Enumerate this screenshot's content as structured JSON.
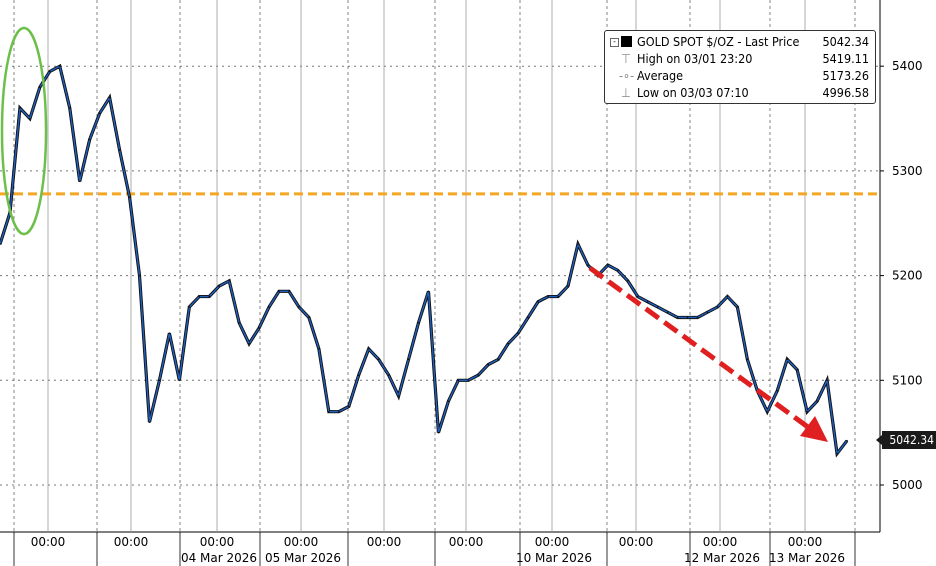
{
  "chart_data": {
    "type": "line",
    "title": "",
    "ylim": [
      4950,
      5460
    ],
    "yticks": [
      5000,
      5100,
      5200,
      5300,
      5400
    ],
    "xtick_labels": [
      {
        "time": "00:00",
        "date": ""
      },
      {
        "time": "00:00",
        "date": ""
      },
      {
        "time": "00:00",
        "date": "04 Mar 2026"
      },
      {
        "time": "00:00",
        "date": "05 Mar 2026"
      },
      {
        "time": "00:00",
        "date": ""
      },
      {
        "time": "00:00",
        "date": ""
      },
      {
        "time": "00:00",
        "date": "10 Mar 2026"
      },
      {
        "time": "00:00",
        "date": ""
      },
      {
        "time": "00:00",
        "date": "12 Mar 2026"
      },
      {
        "time": "00:00",
        "date": "13 Mar 2026"
      }
    ],
    "series": [
      {
        "name": "GOLD SPOT $/OZ - Last Price",
        "color": "#1f5fbf",
        "values": [
          5230,
          5260,
          5360,
          5350,
          5380,
          5395,
          5400,
          5360,
          5290,
          5330,
          5355,
          5370,
          5320,
          5275,
          5200,
          5060,
          5100,
          5145,
          5100,
          5170,
          5180,
          5180,
          5190,
          5195,
          5155,
          5135,
          5150,
          5170,
          5185,
          5185,
          5170,
          5160,
          5130,
          5070,
          5070,
          5075,
          5105,
          5130,
          5120,
          5105,
          5085,
          5120,
          5155,
          5185,
          5050,
          5080,
          5100,
          5100,
          5105,
          5115,
          5120,
          5135,
          5145,
          5160,
          5175,
          5180,
          5180,
          5190,
          5230,
          5210,
          5200,
          5210,
          5205,
          5195,
          5180,
          5175,
          5170,
          5165,
          5160,
          5160,
          5160,
          5165,
          5170,
          5180,
          5170,
          5120,
          5090,
          5070,
          5090,
          5120,
          5110,
          5070,
          5080,
          5100,
          5030,
          5042.34
        ]
      }
    ],
    "reference_line": {
      "value": 5278,
      "color": "#f5a623",
      "style": "dashed"
    },
    "last_price_label": "5042.34",
    "grid": true,
    "legend": {
      "position": "top-right",
      "rows": [
        {
          "label": "GOLD SPOT $/OZ - Last Price",
          "value": "5042.34"
        },
        {
          "label": "High on 03/01 23:20",
          "value": "5419.11"
        },
        {
          "label": "Average",
          "value": "5173.26"
        },
        {
          "label": "Low on 03/03 07:10",
          "value": "4996.58"
        }
      ]
    },
    "annotations": {
      "ellipse_color": "#6cc04a",
      "arrow_color": "#e02020"
    }
  }
}
